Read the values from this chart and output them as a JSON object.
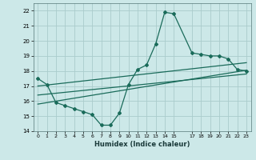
{
  "title": "",
  "xlabel": "Humidex (Indice chaleur)",
  "bg_color": "#cce8e8",
  "grid_color": "#aacccc",
  "line_color": "#1a6b5a",
  "xlim": [
    -0.5,
    23.5
  ],
  "ylim": [
    14,
    22.5
  ],
  "xticks": [
    0,
    1,
    2,
    3,
    4,
    5,
    6,
    7,
    8,
    9,
    10,
    11,
    12,
    13,
    14,
    15,
    17,
    18,
    19,
    20,
    21,
    22,
    23
  ],
  "yticks": [
    14,
    15,
    16,
    17,
    18,
    19,
    20,
    21,
    22
  ],
  "main_x": [
    0,
    1,
    2,
    3,
    4,
    5,
    6,
    7,
    8,
    9,
    10,
    11,
    12,
    13,
    14,
    15,
    17,
    18,
    19,
    20,
    21,
    22,
    23
  ],
  "main_y": [
    17.5,
    17.1,
    15.9,
    15.7,
    15.5,
    15.3,
    15.1,
    14.4,
    14.4,
    15.2,
    17.1,
    18.1,
    18.4,
    19.8,
    21.9,
    21.8,
    19.2,
    19.1,
    19.0,
    19.0,
    18.8,
    18.1,
    18.0
  ],
  "trend1_x": [
    0,
    23
  ],
  "trend1_y": [
    17.0,
    18.55
  ],
  "trend2_x": [
    0,
    23
  ],
  "trend2_y": [
    15.8,
    18.05
  ],
  "trend3_x": [
    0,
    23
  ],
  "trend3_y": [
    16.4,
    17.8
  ]
}
